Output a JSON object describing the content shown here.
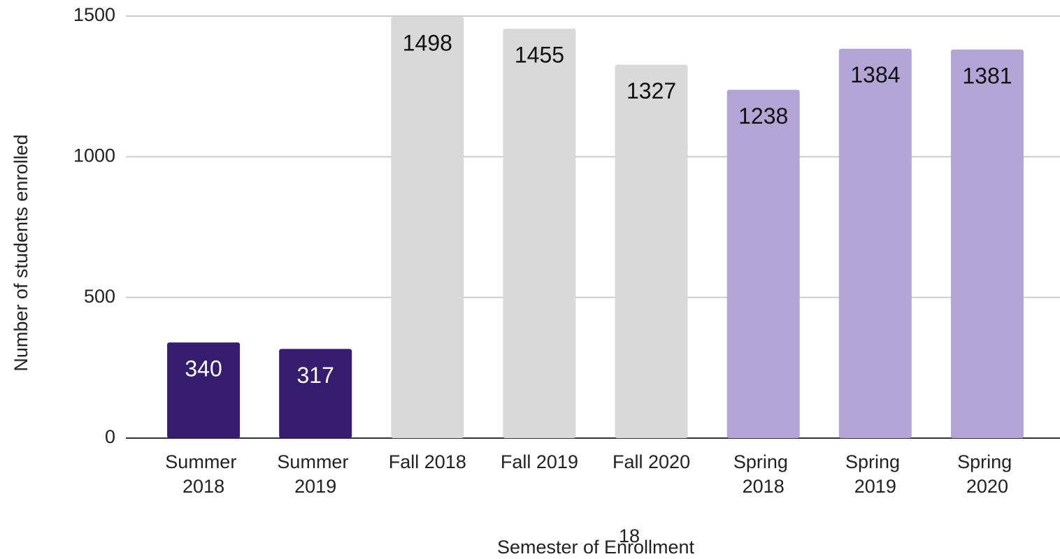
{
  "chart_data": {
    "type": "bar",
    "x_label": "Semester of Enrollment",
    "y_label": "Number of students enrolled",
    "annotations": [
      "18"
    ],
    "categories": [
      "Summer 2018",
      "Summer 2019",
      "Fall 2018",
      "Fall 2019",
      "Fall 2020",
      "Spring 2018",
      "Spring 2019",
      "Spring 2020"
    ],
    "values": [
      340,
      317,
      1498,
      1455,
      1327,
      1238,
      1384,
      1381
    ],
    "colors": [
      "#361c6e",
      "#361c6e",
      "#d9d9d9",
      "#d9d9d9",
      "#d9d9d9",
      "#b3a6d6",
      "#b3a6d6",
      "#b3a6d6"
    ],
    "label_colors": [
      "#ffffff",
      "#ffffff",
      "#111111",
      "#111111",
      "#111111",
      "#111111",
      "#111111",
      "#111111"
    ],
    "ylim": [
      0,
      1500
    ],
    "yticks": [
      0,
      500,
      1000,
      1500
    ],
    "grid": true
  }
}
